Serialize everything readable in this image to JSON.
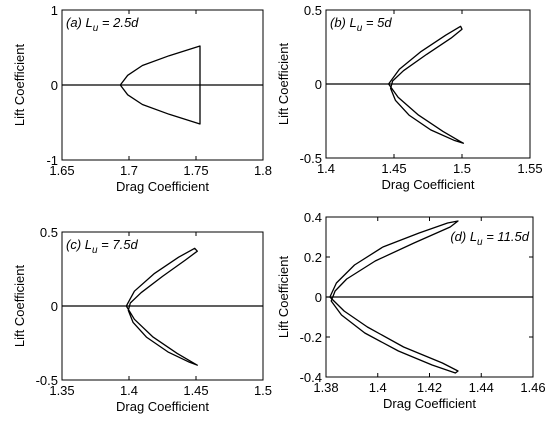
{
  "chart_data": [
    {
      "type": "line",
      "panel": "(a)",
      "annotation": {
        "prefix": "(a) ",
        "var": "L",
        "sub": "u",
        "rest": " = 2.5d"
      },
      "xlabel": "Drag Coefficient",
      "ylabel": "Lift Coefficient",
      "xlim": [
        1.65,
        1.8
      ],
      "ylim": [
        -1,
        1
      ],
      "xticks": [
        "1.65",
        "1.7",
        "1.75",
        "1.8"
      ],
      "yticks": [
        "-1",
        "0",
        "1"
      ],
      "zero_line": true,
      "series": [
        {
          "x": [
            1.6935,
            1.699,
            1.71,
            1.73,
            1.753,
            1.753,
            1.73,
            1.71,
            1.699,
            1.6935
          ],
          "y": [
            0.0,
            0.13,
            0.26,
            0.39,
            0.52,
            -0.52,
            -0.39,
            -0.26,
            -0.13,
            0.0
          ]
        }
      ]
    },
    {
      "type": "line",
      "panel": "(b)",
      "annotation": {
        "prefix": "(b) ",
        "var": "L",
        "sub": "u",
        "rest": " = 5d"
      },
      "xlabel": "Drag Coefficient",
      "ylabel": "Lift Coefficient",
      "xlim": [
        1.4,
        1.55
      ],
      "ylim": [
        -0.5,
        0.5
      ],
      "xticks": [
        "1.4",
        "1.45",
        "1.5",
        "1.55"
      ],
      "yticks": [
        "-0.5",
        "0",
        "0.5"
      ],
      "zero_line": true,
      "series": [
        {
          "x": [
            1.446,
            1.454,
            1.47,
            1.488,
            1.499,
            1.5,
            1.492,
            1.474,
            1.457,
            1.449,
            1.4475,
            1.451,
            1.461,
            1.477,
            1.494,
            1.501,
            1.499,
            1.486,
            1.468,
            1.453,
            1.446
          ],
          "y": [
            0.0,
            0.1,
            0.22,
            0.33,
            0.39,
            0.37,
            0.31,
            0.2,
            0.09,
            0.02,
            -0.03,
            -0.11,
            -0.21,
            -0.31,
            -0.38,
            -0.4,
            -0.39,
            -0.32,
            -0.21,
            -0.09,
            0.0
          ]
        }
      ]
    },
    {
      "type": "line",
      "panel": "(c)",
      "annotation": {
        "prefix": "(c) ",
        "var": "L",
        "sub": "u",
        "rest": " = 7.5d"
      },
      "xlabel": "Drag Coefficient",
      "ylabel": "Lift Coefficient",
      "xlim": [
        1.35,
        1.5
      ],
      "ylim": [
        -0.5,
        0.5
      ],
      "xticks": [
        "1.35",
        "1.4",
        "1.45",
        "1.5"
      ],
      "yticks": [
        "-0.5",
        "0",
        "0.5"
      ],
      "zero_line": true,
      "series": [
        {
          "x": [
            1.398,
            1.404,
            1.419,
            1.437,
            1.449,
            1.451,
            1.442,
            1.425,
            1.409,
            1.401,
            1.3995,
            1.403,
            1.413,
            1.429,
            1.445,
            1.451,
            1.449,
            1.436,
            1.418,
            1.404,
            1.398
          ],
          "y": [
            0.0,
            0.1,
            0.22,
            0.33,
            0.39,
            0.37,
            0.31,
            0.2,
            0.09,
            0.02,
            -0.03,
            -0.11,
            -0.21,
            -0.31,
            -0.38,
            -0.4,
            -0.39,
            -0.32,
            -0.21,
            -0.09,
            0.0
          ]
        }
      ]
    },
    {
      "type": "line",
      "panel": "(d)",
      "annotation": {
        "prefix": "(d) ",
        "var": "L",
        "sub": "u",
        "rest": " = 11.5d"
      },
      "xlabel": "Drag Coefficient",
      "ylabel": "Lift Coefficient",
      "xlim": [
        1.38,
        1.46
      ],
      "ylim": [
        -0.4,
        0.4
      ],
      "xticks": [
        "1.38",
        "1.4",
        "1.42",
        "1.44",
        "1.46"
      ],
      "yticks": [
        "-0.4",
        "-0.2",
        "0",
        "0.2",
        "0.4"
      ],
      "zero_line": true,
      "series": [
        {
          "x": [
            1.3815,
            1.384,
            1.391,
            1.402,
            1.416,
            1.427,
            1.431,
            1.428,
            1.414,
            1.399,
            1.388,
            1.3835,
            1.382,
            1.386,
            1.395,
            1.408,
            1.421,
            1.43,
            1.431,
            1.425,
            1.41,
            1.396,
            1.387,
            1.3815
          ],
          "y": [
            0.0,
            0.07,
            0.16,
            0.25,
            0.32,
            0.37,
            0.38,
            0.35,
            0.27,
            0.18,
            0.09,
            0.03,
            -0.02,
            -0.09,
            -0.18,
            -0.27,
            -0.34,
            -0.38,
            -0.37,
            -0.33,
            -0.25,
            -0.15,
            -0.07,
            0.0
          ]
        }
      ]
    }
  ]
}
